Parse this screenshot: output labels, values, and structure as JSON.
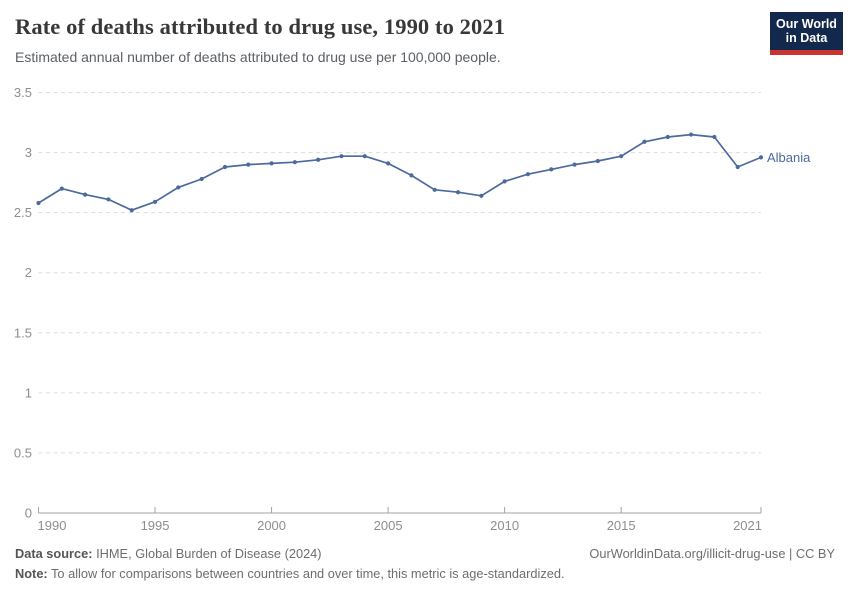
{
  "header": {
    "title": "Rate of deaths attributed to drug use, 1990 to 2021",
    "subtitle": "Estimated annual number of deaths attributed to drug use per 100,000 people.",
    "logo": {
      "line1": "Our World",
      "line2": "in Data"
    }
  },
  "chart_data": {
    "type": "line",
    "title": "Rate of deaths attributed to drug use, 1990 to 2021",
    "xlabel": "",
    "ylabel": "",
    "xlim": [
      1990,
      2021
    ],
    "ylim": [
      0,
      3.5
    ],
    "x_ticks": [
      1990,
      1995,
      2000,
      2005,
      2010,
      2015,
      2021
    ],
    "y_ticks": [
      0,
      0.5,
      1,
      1.5,
      2,
      2.5,
      3,
      3.5
    ],
    "grid": "dashed-horizontal",
    "legend_position": "end-of-line-label",
    "series": [
      {
        "name": "Albania",
        "color": "#4c6a9c",
        "x": [
          1990,
          1991,
          1992,
          1993,
          1994,
          1995,
          1996,
          1997,
          1998,
          1999,
          2000,
          2001,
          2002,
          2003,
          2004,
          2005,
          2006,
          2007,
          2008,
          2009,
          2010,
          2011,
          2012,
          2013,
          2014,
          2015,
          2016,
          2017,
          2018,
          2019,
          2020,
          2021
        ],
        "values": [
          2.58,
          2.7,
          2.65,
          2.61,
          2.52,
          2.59,
          2.71,
          2.78,
          2.88,
          2.9,
          2.91,
          2.92,
          2.94,
          2.97,
          2.97,
          2.91,
          2.81,
          2.69,
          2.67,
          2.64,
          2.76,
          2.82,
          2.86,
          2.9,
          2.93,
          2.97,
          3.09,
          3.13,
          3.15,
          3.13,
          2.88,
          2.96
        ]
      }
    ]
  },
  "footer": {
    "datasource_label": "Data source:",
    "datasource_value": " IHME, Global Burden of Disease (2024)",
    "note_label": "Note:",
    "note_value": " To allow for comparisons between countries and over time, this metric is age-standardized.",
    "link": "OurWorldinData.org/illicit-drug-use | CC BY"
  },
  "colors": {
    "line": "#4c6a9c",
    "grid": "#dddddd",
    "axis": "#a3a3a3",
    "tick_label": "#8e8e8e",
    "title": "#383838",
    "subtitle": "#5b6066",
    "logo_bg": "#12294d",
    "logo_stripe": "#c9352e"
  }
}
